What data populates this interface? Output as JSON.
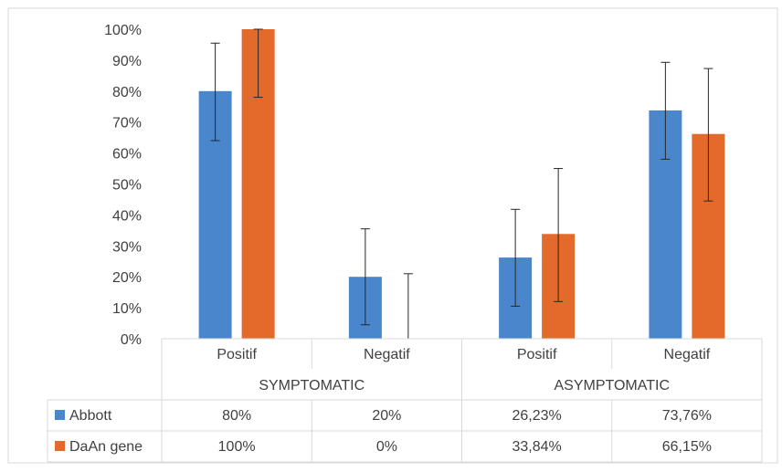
{
  "chart_data": {
    "type": "bar",
    "ylim": [
      0,
      1
    ],
    "y_ticks": [
      "0%",
      "10%",
      "20%",
      "30%",
      "40%",
      "50%",
      "60%",
      "70%",
      "80%",
      "90%",
      "100%"
    ],
    "groups": [
      "SYMPTOMATIC",
      "ASYMPTOMATIC"
    ],
    "categories": [
      "Positif",
      "Negatif",
      "Positif",
      "Negatif"
    ],
    "grid": false,
    "legend": "data-table",
    "series": [
      {
        "name": "Abbott",
        "color": "#4a86cc",
        "values": [
          0.8,
          0.2,
          0.2623,
          0.7376
        ],
        "error_low": [
          0.64,
          0.045,
          0.105,
          0.58
        ],
        "error_high": [
          0.955,
          0.355,
          0.418,
          0.893
        ],
        "table_labels": [
          "80%",
          "20%",
          "26,23%",
          "73,76%"
        ]
      },
      {
        "name": "DaAn gene",
        "color": "#e46a2b",
        "values": [
          1.0,
          0.0,
          0.3384,
          0.6615
        ],
        "error_low": [
          0.78,
          0.0,
          0.12,
          0.445
        ],
        "error_high": [
          1.0,
          0.21,
          0.55,
          0.873
        ],
        "table_labels": [
          "100%",
          "0%",
          "33,84%",
          "66,15%"
        ]
      }
    ]
  }
}
